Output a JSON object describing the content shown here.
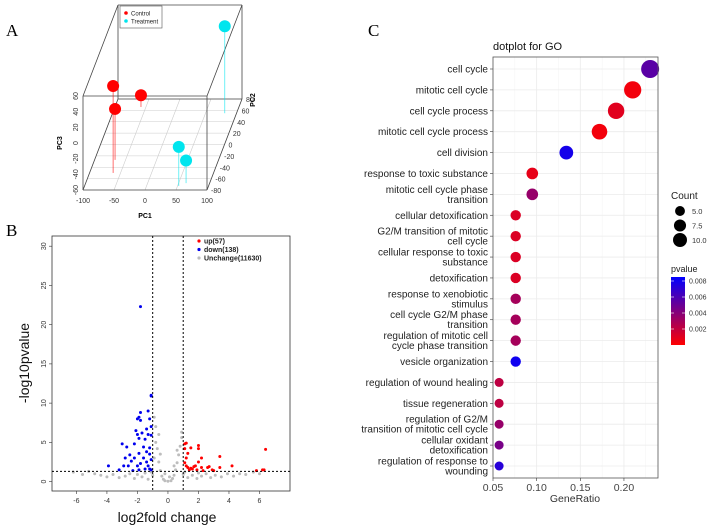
{
  "panels": {
    "a": "A",
    "b": "B",
    "c": "C"
  },
  "chart_data": [
    {
      "type": "scatter",
      "subtype": "3d-pca",
      "xlabel": "PC1",
      "ylabel": "PC2",
      "zlabel": "PC3",
      "xlim": [
        -100,
        100
      ],
      "ylim": [
        -80,
        80
      ],
      "zlim": [
        -60,
        60
      ],
      "xticks": [
        "-100",
        "-50",
        "0",
        "50",
        "100"
      ],
      "yticks": [
        "-80",
        "-60",
        "-40",
        "-20",
        "0",
        "20",
        "40",
        "60",
        "80"
      ],
      "zticks": [
        "-60",
        "-40",
        "-20",
        "0",
        "20",
        "40",
        "60"
      ],
      "legend": [
        "Control",
        "Treatment"
      ],
      "colors": {
        "Control": "#ff0000",
        "Treatment": "#00e5ee"
      },
      "series": [
        {
          "name": "Control",
          "points": [
            [
              -62,
              -50,
              51
            ],
            [
              -58,
              66,
              -45
            ],
            [
              -67,
              -27,
              5
            ]
          ]
        },
        {
          "name": "Treatment",
          "points": [
            [
              81,
              55,
              51
            ],
            [
              52,
              -73,
              -10
            ],
            [
              62,
              -68,
              -31
            ]
          ]
        }
      ]
    },
    {
      "type": "scatter",
      "subtype": "volcano",
      "xlabel": "log2fold change",
      "ylabel": "-log10pvalue",
      "xlim": [
        -7.6,
        8
      ],
      "ylim": [
        -1.2,
        31.3
      ],
      "xticks": [
        -6,
        -4,
        -2,
        0,
        2,
        4,
        6
      ],
      "yticks": [
        0,
        5,
        10,
        15,
        20,
        25,
        30
      ],
      "fc_threshold": [
        -1,
        1
      ],
      "p_threshold": 1.3,
      "legend": [
        "up(57)",
        "down(138)",
        "Unchange(11630)"
      ],
      "colors": {
        "up": "#ff0000",
        "down": "#0000ee",
        "unchange": "#bdbdbd"
      },
      "series": [
        {
          "name": "up",
          "points": [
            [
              1.1,
              4.8
            ],
            [
              1.2,
              4.9
            ],
            [
              1.1,
              4.2
            ],
            [
              1.5,
              4.3
            ],
            [
              1.3,
              3.6
            ],
            [
              2.0,
              4.6
            ],
            [
              2.0,
              4.2
            ],
            [
              2.2,
              3.0
            ],
            [
              1.2,
              3.0
            ],
            [
              1.1,
              2.4
            ],
            [
              1.3,
              1.8
            ],
            [
              1.4,
              1.5
            ],
            [
              1.6,
              1.6
            ],
            [
              1.7,
              1.9
            ],
            [
              1.8,
              2.0
            ],
            [
              1.5,
              1.7
            ],
            [
              2.0,
              2.5
            ],
            [
              2.2,
              1.8
            ],
            [
              2.3,
              1.4
            ],
            [
              2.6,
              1.8
            ],
            [
              2.7,
              1.9
            ],
            [
              2.9,
              1.5
            ],
            [
              3.0,
              1.4
            ],
            [
              3.4,
              3.2
            ],
            [
              3.4,
              1.8
            ],
            [
              4.2,
              2.0
            ],
            [
              5.8,
              1.4
            ],
            [
              6.2,
              1.5
            ],
            [
              6.3,
              1.5
            ],
            [
              6.4,
              4.1
            ],
            [
              1.9,
              1.5
            ],
            [
              1.2,
              2.0
            ]
          ]
        },
        {
          "name": "down",
          "points": [
            [
              -1.8,
              22.3
            ],
            [
              -1.1,
              11.0
            ],
            [
              -1.1,
              10.9
            ],
            [
              -1.8,
              8.8
            ],
            [
              -1.3,
              9.0
            ],
            [
              -2.0,
              8.0
            ],
            [
              -1.9,
              8.2
            ],
            [
              -1.8,
              7.8
            ],
            [
              -1.2,
              8.0
            ],
            [
              -1.4,
              6.7
            ],
            [
              -1.1,
              7.0
            ],
            [
              -2.1,
              6.5
            ],
            [
              -2.0,
              6.0
            ],
            [
              -1.7,
              6.2
            ],
            [
              -1.3,
              6.0
            ],
            [
              -1.1,
              5.9
            ],
            [
              -1.5,
              5.4
            ],
            [
              -1.9,
              5.5
            ],
            [
              -2.2,
              4.8
            ],
            [
              -3.0,
              4.8
            ],
            [
              -2.7,
              4.4
            ],
            [
              -1.6,
              4.4
            ],
            [
              -1.2,
              4.3
            ],
            [
              -1.4,
              3.8
            ],
            [
              -1.9,
              3.6
            ],
            [
              -2.5,
              3.4
            ],
            [
              -1.2,
              3.5
            ],
            [
              -1.6,
              3.0
            ],
            [
              -2.2,
              3.0
            ],
            [
              -2.8,
              3.0
            ],
            [
              -1.1,
              2.8
            ],
            [
              -1.4,
              2.5
            ],
            [
              -2.4,
              2.6
            ],
            [
              -1.8,
              2.3
            ],
            [
              -2.0,
              2.0
            ],
            [
              -2.6,
              2.0
            ],
            [
              -1.3,
              2.0
            ],
            [
              -2.9,
              2.0
            ],
            [
              -3.9,
              2.0
            ],
            [
              -1.5,
              1.6
            ],
            [
              -1.9,
              1.5
            ],
            [
              -3.2,
              1.5
            ],
            [
              -1.2,
              1.6
            ],
            [
              -2.3,
              1.4
            ],
            [
              -1.1,
              1.5
            ]
          ]
        },
        {
          "name": "Unchange",
          "points": [
            [
              -5.2,
              1.3
            ],
            [
              -4.8,
              1.0
            ],
            [
              -4.4,
              0.8
            ],
            [
              -4.0,
              0.6
            ],
            [
              -3.6,
              0.9
            ],
            [
              -3.2,
              0.5
            ],
            [
              -2.8,
              0.7
            ],
            [
              -2.5,
              1.0
            ],
            [
              -2.2,
              0.4
            ],
            [
              -2.0,
              0.9
            ],
            [
              -1.7,
              0.6
            ],
            [
              -1.5,
              1.1
            ],
            [
              -1.3,
              0.3
            ],
            [
              -1.0,
              0.8
            ],
            [
              -0.9,
              3.0
            ],
            [
              -0.8,
              5.0
            ],
            [
              -0.8,
              7.0
            ],
            [
              -0.9,
              8.2
            ],
            [
              -0.7,
              4.2
            ],
            [
              -0.6,
              2.5
            ],
            [
              -0.5,
              1.4
            ],
            [
              -0.4,
              0.7
            ],
            [
              -0.3,
              0.3
            ],
            [
              -0.2,
              0.1
            ],
            [
              0,
              0.05
            ],
            [
              0.2,
              0.1
            ],
            [
              0.3,
              0.4
            ],
            [
              0.4,
              0.8
            ],
            [
              0.5,
              1.5
            ],
            [
              0.6,
              2.4
            ],
            [
              0.7,
              3.4
            ],
            [
              0.8,
              4.5
            ],
            [
              0.9,
              5.6
            ],
            [
              0.9,
              6.3
            ],
            [
              1.0,
              0.9
            ],
            [
              1.3,
              0.5
            ],
            [
              1.6,
              0.8
            ],
            [
              1.9,
              0.4
            ],
            [
              2.2,
              0.7
            ],
            [
              2.5,
              1.0
            ],
            [
              2.8,
              0.5
            ],
            [
              3.1,
              0.8
            ],
            [
              3.5,
              0.6
            ],
            [
              3.9,
              1.0
            ],
            [
              4.3,
              0.7
            ],
            [
              4.7,
              1.0
            ],
            [
              5.1,
              0.9
            ],
            [
              5.6,
              1.2
            ],
            [
              6.0,
              1.0
            ],
            [
              -6.2,
              1.2
            ],
            [
              -5.6,
              0.9
            ],
            [
              -0.6,
              6.0
            ],
            [
              -0.5,
              3.5
            ],
            [
              0.4,
              2.0
            ],
            [
              0.6,
              4.0
            ],
            [
              -0.2,
              1.0
            ],
            [
              0.1,
              0.6
            ],
            [
              -1.1,
              1.2
            ],
            [
              1.1,
              1.2
            ],
            [
              2.0,
              1.1
            ]
          ]
        }
      ]
    },
    {
      "type": "scatter",
      "subtype": "dotplot",
      "title": "dotplot for GO",
      "xlabel": "GeneRatio",
      "xlim": [
        0.05,
        0.239
      ],
      "xticks": [
        "0.05",
        "0.10",
        "0.15",
        "0.20"
      ],
      "size_legend": {
        "title": "Count",
        "values": [
          "5.0",
          "7.5",
          "10.0"
        ]
      },
      "color_legend": {
        "title": "pvalue",
        "ticks": [
          "0.008",
          "0.006",
          "0.004",
          "0.002"
        ],
        "low_color": "#ff0000",
        "high_color": "#0000ff",
        "range": [
          0,
          0.0085
        ]
      },
      "terms": [
        {
          "label": [
            "cell cycle"
          ],
          "gene_ratio": 0.23,
          "count": 12,
          "pvalue": 0.0055
        },
        {
          "label": [
            "mitotic cell cycle"
          ],
          "gene_ratio": 0.21,
          "count": 11,
          "pvalue": 0.0004
        },
        {
          "label": [
            "cell cycle process"
          ],
          "gene_ratio": 0.191,
          "count": 10,
          "pvalue": 0.001
        },
        {
          "label": [
            "mitotic cell cycle process"
          ],
          "gene_ratio": 0.172,
          "count": 9,
          "pvalue": 0.0004
        },
        {
          "label": [
            "cell division"
          ],
          "gene_ratio": 0.134,
          "count": 7,
          "pvalue": 0.0078
        },
        {
          "label": [
            "response to toxic substance"
          ],
          "gene_ratio": 0.095,
          "count": 5,
          "pvalue": 0.0008
        },
        {
          "label": [
            "mitotic cell cycle phase",
            "transition"
          ],
          "gene_ratio": 0.095,
          "count": 5,
          "pvalue": 0.0035
        },
        {
          "label": [
            "cellular detoxification"
          ],
          "gene_ratio": 0.076,
          "count": 4,
          "pvalue": 0.0012
        },
        {
          "label": [
            "G2/M transition of mitotic",
            "cell cycle"
          ],
          "gene_ratio": 0.076,
          "count": 4,
          "pvalue": 0.0012
        },
        {
          "label": [
            "cellular response to toxic",
            "substance"
          ],
          "gene_ratio": 0.076,
          "count": 4,
          "pvalue": 0.0012
        },
        {
          "label": [
            "detoxification"
          ],
          "gene_ratio": 0.076,
          "count": 4,
          "pvalue": 0.0012
        },
        {
          "label": [
            "response to xenobiotic",
            "stimulus"
          ],
          "gene_ratio": 0.076,
          "count": 4,
          "pvalue": 0.003
        },
        {
          "label": [
            "cell cycle G2/M phase",
            "transition"
          ],
          "gene_ratio": 0.076,
          "count": 4,
          "pvalue": 0.003
        },
        {
          "label": [
            "regulation of mitotic cell",
            "cycle phase transition"
          ],
          "gene_ratio": 0.076,
          "count": 4,
          "pvalue": 0.003
        },
        {
          "label": [
            "vesicle organization"
          ],
          "gene_ratio": 0.076,
          "count": 4,
          "pvalue": 0.008
        },
        {
          "label": [
            "regulation of wound healing"
          ],
          "gene_ratio": 0.057,
          "count": 3,
          "pvalue": 0.0022
        },
        {
          "label": [
            "tissue regeneration"
          ],
          "gene_ratio": 0.057,
          "count": 3,
          "pvalue": 0.0022
        },
        {
          "label": [
            "regulation of G2/M",
            "transition of mitotic cell",
            "cycle"
          ],
          "gene_ratio": 0.057,
          "count": 3,
          "pvalue": 0.0035
        },
        {
          "label": [
            "cellular oxidant",
            "detoxification"
          ],
          "gene_ratio": 0.057,
          "count": 3,
          "pvalue": 0.0045
        },
        {
          "label": [
            "regulation of response to",
            "wounding"
          ],
          "gene_ratio": 0.057,
          "count": 3,
          "pvalue": 0.0072
        }
      ]
    }
  ]
}
